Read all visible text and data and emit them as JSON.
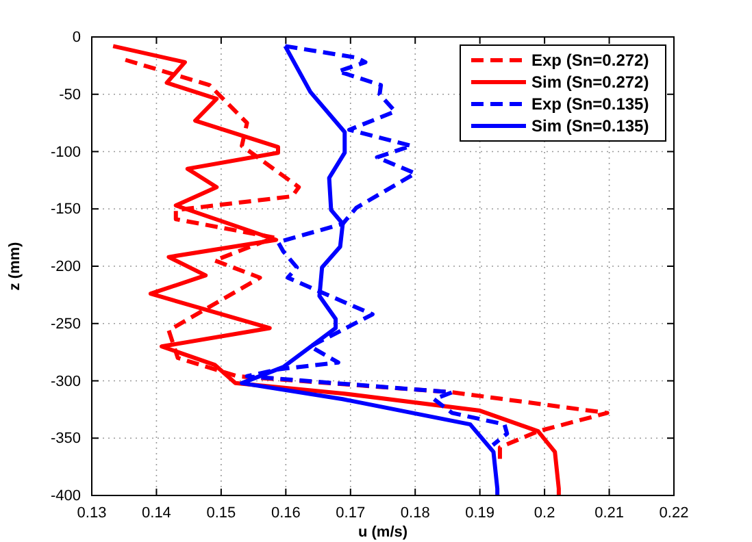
{
  "chart_data": {
    "type": "line",
    "xlabel": "u (m/s)",
    "ylabel": "z (mm)",
    "xlim": [
      0.13,
      0.22
    ],
    "xticks": [
      0.13,
      0.14,
      0.15,
      0.16,
      0.17,
      0.18,
      0.19,
      0.2,
      0.21,
      0.22
    ],
    "ylim": [
      -400,
      0
    ],
    "yticks": [
      -400,
      -350,
      -300,
      -250,
      -200,
      -150,
      -100,
      -50,
      0
    ],
    "grid": true,
    "legend": "top right",
    "marker": "none",
    "series": [
      {
        "name": "Exp (Sn=0.272)",
        "color": "#ff0000",
        "line_style": "dashed",
        "x": [
          0.1352,
          0.1482,
          0.154,
          0.1532,
          0.162,
          0.161,
          0.143,
          0.143,
          0.1582,
          0.149,
          0.156,
          0.1419,
          0.1433,
          0.1525,
          0.1857,
          0.2097,
          0.199,
          0.1931,
          0.1931
        ],
        "values": [
          -20,
          -42,
          -75,
          -95,
          -131,
          -139,
          -151,
          -159,
          -175,
          -195,
          -210,
          -256,
          -280,
          -296,
          -310,
          -328,
          -344,
          -358,
          -370
        ]
      },
      {
        "name": "Sim (Sn=0.272)",
        "color": "#ff0000",
        "line_style": "solid",
        "x": [
          0.1333,
          0.1444,
          0.1416,
          0.1493,
          0.146,
          0.1588,
          0.1588,
          0.1448,
          0.1493,
          0.143,
          0.1585,
          0.1419,
          0.1476,
          0.1391,
          0.1575,
          0.1408,
          0.149,
          0.1522,
          0.1688,
          0.19,
          0.199,
          0.2016,
          0.2022,
          0.2022
        ],
        "values": [
          -8,
          -22,
          -40,
          -54,
          -73,
          -96,
          -101,
          -115,
          -131,
          -147,
          -177,
          -192,
          -208,
          -224,
          -254,
          -270,
          -286,
          -302,
          -311,
          -326,
          -344,
          -362,
          -394,
          -400
        ]
      },
      {
        "name": "Exp (Sn=0.135)",
        "color": "#0000ff",
        "line_style": "dashed",
        "x": [
          0.1599,
          0.1709,
          0.1723,
          0.1681,
          0.1747,
          0.1745,
          0.1769,
          0.1698,
          0.1794,
          0.1741,
          0.18,
          0.1709,
          0.1688,
          0.1588,
          0.1596,
          0.1617,
          0.1603,
          0.1734,
          0.1638,
          0.1681,
          0.1588,
          0.154,
          0.1857,
          0.1829,
          0.1857,
          0.1938,
          0.1942,
          0.192
        ],
        "values": [
          -8,
          -18,
          -22,
          -30,
          -42,
          -50,
          -65,
          -81,
          -95,
          -105,
          -119,
          -149,
          -163,
          -179,
          -187,
          -201,
          -210,
          -242,
          -270,
          -284,
          -290,
          -296,
          -310,
          -316,
          -328,
          -338,
          -346,
          -356
        ]
      },
      {
        "name": "Sim (Sn=0.135)",
        "color": "#0000ff",
        "line_style": "solid",
        "x": [
          0.1599,
          0.1638,
          0.1691,
          0.1691,
          0.1667,
          0.167,
          0.1688,
          0.1684,
          0.1656,
          0.1652,
          0.1677,
          0.1677,
          0.1596,
          0.1532,
          0.1688,
          0.1885,
          0.1921,
          0.1927,
          0.1927
        ],
        "values": [
          -8,
          -48,
          -83,
          -101,
          -123,
          -151,
          -163,
          -183,
          -201,
          -226,
          -246,
          -254,
          -288,
          -302,
          -316,
          -338,
          -362,
          -394,
          -400
        ]
      }
    ]
  }
}
